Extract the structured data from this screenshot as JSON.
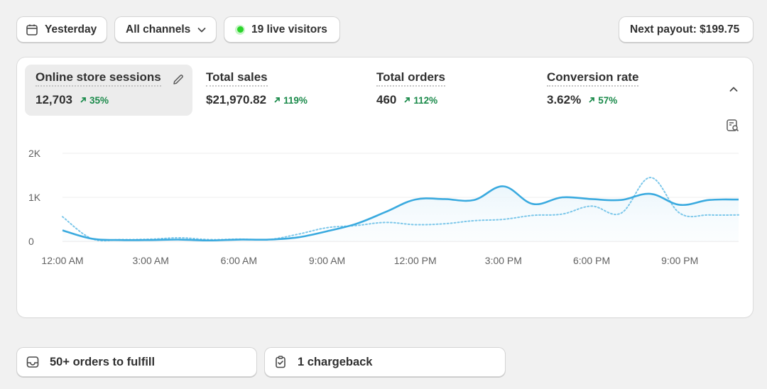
{
  "toolbar": {
    "date_label": "Yesterday",
    "channels_label": "All channels",
    "live_label": "19 live visitors",
    "payout_label": "Next payout: $199.75"
  },
  "metrics": [
    {
      "label": "Online store sessions",
      "value": "12,703",
      "delta": "35%",
      "selected": true
    },
    {
      "label": "Total sales",
      "value": "$21,970.82",
      "delta": "119%"
    },
    {
      "label": "Total orders",
      "value": "460",
      "delta": "112%"
    },
    {
      "label": "Conversion rate",
      "value": "3.62%",
      "delta": "57%"
    }
  ],
  "colors": {
    "primary_line": "#3aaadf",
    "comparison_line": "#7cc7ea",
    "positive_delta": "#1a8a4a",
    "live_dot": "#2bd42b"
  },
  "chart_data": {
    "type": "line",
    "x": [
      "12:00 AM",
      "1:00 AM",
      "2:00 AM",
      "3:00 AM",
      "4:00 AM",
      "5:00 AM",
      "6:00 AM",
      "7:00 AM",
      "8:00 AM",
      "9:00 AM",
      "10:00 AM",
      "11:00 AM",
      "12:00 PM",
      "1:00 PM",
      "2:00 PM",
      "3:00 PM",
      "4:00 PM",
      "5:00 PM",
      "6:00 PM",
      "7:00 PM",
      "8:00 PM",
      "9:00 PM",
      "10:00 PM",
      "11:00 PM"
    ],
    "xticks": [
      "12:00 AM",
      "3:00 AM",
      "6:00 AM",
      "9:00 AM",
      "12:00 PM",
      "3:00 PM",
      "6:00 PM",
      "9:00 PM"
    ],
    "yticks": [
      "0",
      "1K",
      "2K"
    ],
    "ylim": [
      0,
      2000
    ],
    "series": [
      {
        "values": [
          250,
          60,
          30,
          30,
          40,
          20,
          40,
          40,
          90,
          230,
          400,
          670,
          950,
          960,
          940,
          1250,
          850,
          1000,
          960,
          940,
          1080,
          830,
          940,
          950
        ]
      },
      {
        "values": [
          560,
          60,
          40,
          50,
          80,
          40,
          50,
          40,
          160,
          310,
          360,
          430,
          380,
          400,
          470,
          500,
          590,
          620,
          800,
          640,
          1450,
          640,
          600,
          600
        ]
      }
    ],
    "grid": true
  }
}
